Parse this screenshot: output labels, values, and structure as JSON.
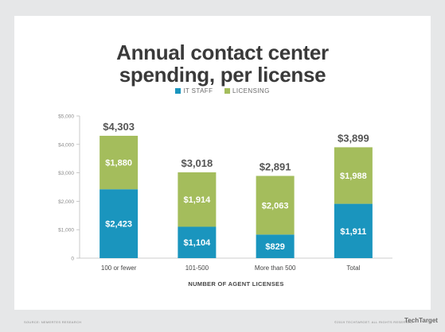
{
  "chart_data": {
    "type": "bar",
    "stacked": true,
    "title_lines": [
      "Annual contact center",
      "spending, per license"
    ],
    "xlabel": "NUMBER OF AGENT LICENSES",
    "ylabel": "",
    "categories": [
      "100 or fewer",
      "101-500",
      "More than 500",
      "Total"
    ],
    "series": [
      {
        "name": "IT STAFF",
        "color": "#1a95be",
        "values": [
          2423,
          1104,
          829,
          1911
        ],
        "labels": [
          "$2,423",
          "$1,104",
          "$829",
          "$1,911"
        ]
      },
      {
        "name": "LICENSING",
        "color": "#a4bd5c",
        "values": [
          1880,
          1914,
          2063,
          1988
        ],
        "labels": [
          "$1,880",
          "$1,914",
          "$2,063",
          "$1,988"
        ]
      }
    ],
    "totals": [
      4303,
      3018,
      2891,
      3899
    ],
    "total_labels": [
      "$4,303",
      "$3,018",
      "$2,891",
      "$3,899"
    ],
    "ylim": [
      0,
      5000
    ],
    "yticks": [
      0,
      1000,
      2000,
      3000,
      4000,
      5000
    ],
    "ytick_labels": [
      "0",
      "$1,000",
      "$2,000",
      "$3,000",
      "$4,000",
      "$5,000"
    ],
    "grid": false,
    "legend_position": "top-center"
  },
  "footer": {
    "source": "SOURCE: NEMERTES RESEARCH",
    "copyright": "©2019 TECHTARGET. ALL RIGHTS RESERVED",
    "logo": "TechTarget"
  }
}
